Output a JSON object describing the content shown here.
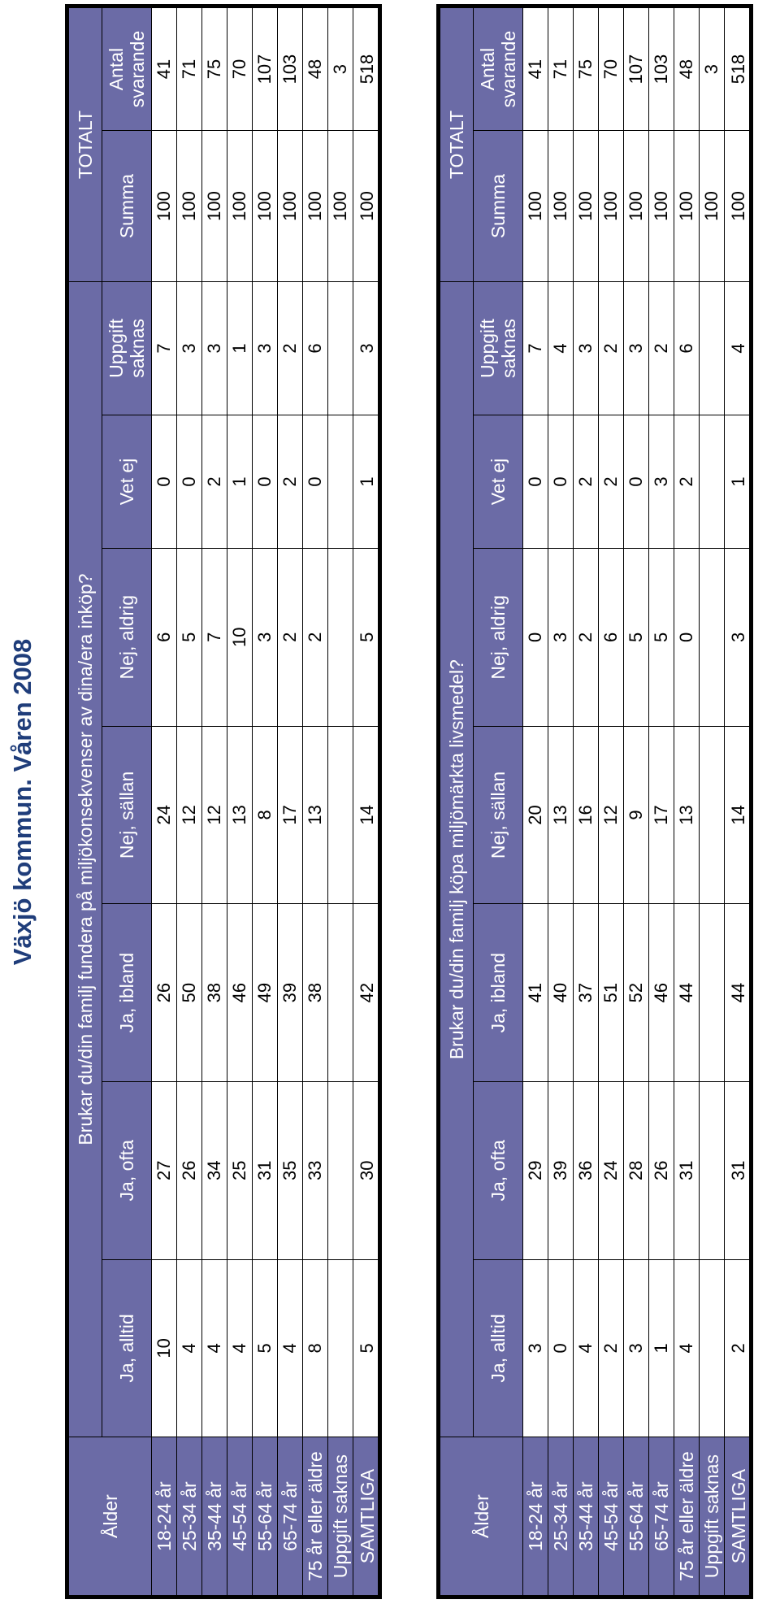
{
  "title": "Växjö kommun. Våren 2008",
  "colors": {
    "header_bg": "#6b6ba6",
    "title": "#1f3d7a"
  },
  "columns": [
    "Ja, alltid",
    "Ja, ofta",
    "Ja, ibland",
    "Nej, sällan",
    "Nej, aldrig",
    "Vet ej",
    "Uppgift saknas",
    "Summa",
    "Antal svarande"
  ],
  "columns_wrapped": {
    "uppgift_saknas": [
      "Uppgift",
      "saknas"
    ],
    "antal_svarande": [
      "Antal",
      "svarande"
    ]
  },
  "age_header": "Ålder",
  "total_header": "TOTALT",
  "tables": [
    {
      "question": "Brukar du/din familj fundera på miljökonsekvenser av dina/era inköp?",
      "rows": [
        {
          "label": "18-24 år",
          "values": [
            "10",
            "27",
            "26",
            "24",
            "6",
            "0",
            "7",
            "100",
            "41"
          ]
        },
        {
          "label": "25-34 år",
          "values": [
            "4",
            "26",
            "50",
            "12",
            "5",
            "0",
            "3",
            "100",
            "71"
          ]
        },
        {
          "label": "35-44 år",
          "values": [
            "4",
            "34",
            "38",
            "12",
            "7",
            "2",
            "3",
            "100",
            "75"
          ]
        },
        {
          "label": "45-54 år",
          "values": [
            "4",
            "25",
            "46",
            "13",
            "10",
            "1",
            "1",
            "100",
            "70"
          ]
        },
        {
          "label": "55-64 år",
          "values": [
            "5",
            "31",
            "49",
            "8",
            "3",
            "0",
            "3",
            "100",
            "107"
          ]
        },
        {
          "label": "65-74 år",
          "values": [
            "4",
            "35",
            "39",
            "17",
            "2",
            "2",
            "2",
            "100",
            "103"
          ]
        },
        {
          "label": "75 år eller äldre",
          "values": [
            "8",
            "33",
            "38",
            "13",
            "2",
            "0",
            "6",
            "100",
            "48"
          ]
        },
        {
          "label": "Uppgift saknas",
          "values": [
            "",
            "",
            "",
            "",
            "",
            "",
            "",
            "100",
            "3"
          ]
        },
        {
          "label": "SAMTLIGA",
          "values": [
            "5",
            "30",
            "42",
            "14",
            "5",
            "1",
            "3",
            "100",
            "518"
          ]
        }
      ]
    },
    {
      "question": "Brukar du/din familj köpa miljömärkta livsmedel?",
      "rows": [
        {
          "label": "18-24 år",
          "values": [
            "3",
            "29",
            "41",
            "20",
            "0",
            "0",
            "7",
            "100",
            "41"
          ]
        },
        {
          "label": "25-34 år",
          "values": [
            "0",
            "39",
            "40",
            "13",
            "3",
            "0",
            "4",
            "100",
            "71"
          ]
        },
        {
          "label": "35-44 år",
          "values": [
            "4",
            "36",
            "37",
            "16",
            "2",
            "2",
            "3",
            "100",
            "75"
          ]
        },
        {
          "label": "45-54 år",
          "values": [
            "2",
            "24",
            "51",
            "12",
            "6",
            "2",
            "2",
            "100",
            "70"
          ]
        },
        {
          "label": "55-64 år",
          "values": [
            "3",
            "28",
            "52",
            "9",
            "5",
            "0",
            "3",
            "100",
            "107"
          ]
        },
        {
          "label": "65-74 år",
          "values": [
            "1",
            "26",
            "46",
            "17",
            "5",
            "3",
            "2",
            "100",
            "103"
          ]
        },
        {
          "label": "75 år eller äldre",
          "values": [
            "4",
            "31",
            "44",
            "13",
            "0",
            "2",
            "6",
            "100",
            "48"
          ]
        },
        {
          "label": "Uppgift saknas",
          "values": [
            "",
            "",
            "",
            "",
            "",
            "",
            "",
            "100",
            "3"
          ]
        },
        {
          "label": "SAMTLIGA",
          "values": [
            "2",
            "31",
            "44",
            "14",
            "3",
            "1",
            "4",
            "100",
            "518"
          ]
        }
      ]
    }
  ]
}
